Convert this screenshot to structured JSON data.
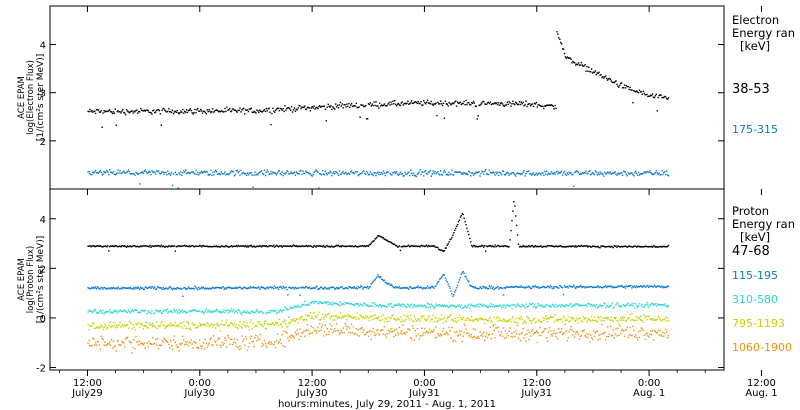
{
  "chart_data": [
    {
      "type": "scatter",
      "panel": "electron",
      "ylabel_lines": [
        "ACE EPAM",
        "log(Electron Flux)",
        "[1/(cm²s ster MeV)]"
      ],
      "legend_title_lines": [
        "Electron",
        "Energy ran",
        "[keV]"
      ],
      "legend_placement": "right",
      "ylim": [
        1.0,
        4.8
      ],
      "yticks": [
        2,
        3,
        4
      ],
      "grid": false,
      "series": [
        {
          "name": "38-53",
          "color": "#000000",
          "profile": [
            [
              0,
              2.62
            ],
            [
              18,
              2.64
            ],
            [
              28,
              2.75
            ],
            [
              36,
              2.8
            ],
            [
              47,
              2.78
            ],
            [
              50,
              2.72
            ],
            [
              50.01,
              4.35
            ],
            [
              51,
              3.75
            ],
            [
              54,
              3.45
            ],
            [
              57,
              3.15
            ],
            [
              60,
              2.95
            ],
            [
              62,
              2.88
            ]
          ],
          "noise": 0.05
        },
        {
          "name": "175-315",
          "color": "#0a78d0",
          "profile": [
            [
              0,
              1.35
            ],
            [
              62,
              1.34
            ]
          ],
          "noise": 0.05
        }
      ]
    },
    {
      "type": "scatter",
      "panel": "proton",
      "ylabel_lines": [
        "ACE EPAM",
        "log(Proton Flux)",
        "[1/(cm²s ster MeV)]"
      ],
      "legend_title_lines": [
        "Proton",
        "Energy ran",
        "[keV]"
      ],
      "legend_placement": "right",
      "ylim": [
        -2.1,
        5.2
      ],
      "yticks": [
        -2,
        0,
        2,
        4
      ],
      "grid": false,
      "series": [
        {
          "name": "47-68",
          "color": "#000000",
          "profile": [
            [
              0,
              2.92
            ],
            [
              30,
              2.92
            ],
            [
              31,
              3.35
            ],
            [
              32,
              3.15
            ],
            [
              33,
              2.92
            ],
            [
              37,
              2.92
            ],
            [
              38,
              2.7
            ],
            [
              39,
              3.4
            ],
            [
              40,
              4.3
            ],
            [
              41,
              2.92
            ],
            [
              45,
              2.92
            ],
            [
              45.5,
              4.8
            ],
            [
              46,
              2.92
            ],
            [
              62,
              2.9
            ]
          ],
          "noise": 0.03
        },
        {
          "name": "115-195",
          "color": "#0a78d0",
          "profile": [
            [
              0,
              1.22
            ],
            [
              30,
              1.25
            ],
            [
              31,
              1.75
            ],
            [
              32,
              1.4
            ],
            [
              33,
              1.25
            ],
            [
              37,
              1.25
            ],
            [
              38,
              1.8
            ],
            [
              39,
              0.9
            ],
            [
              40,
              1.9
            ],
            [
              41,
              1.25
            ],
            [
              62,
              1.3
            ]
          ],
          "noise": 0.05
        },
        {
          "name": "310-580",
          "color": "#29d6d0",
          "profile": [
            [
              0,
              0.3
            ],
            [
              20,
              0.28
            ],
            [
              24,
              0.65
            ],
            [
              30,
              0.55
            ],
            [
              40,
              0.5
            ],
            [
              62,
              0.55
            ]
          ],
          "noise": 0.08
        },
        {
          "name": "795-1193",
          "color": "#c4d400",
          "profile": [
            [
              0,
              -0.3
            ],
            [
              20,
              -0.25
            ],
            [
              24,
              0.1
            ],
            [
              30,
              0.05
            ],
            [
              40,
              -0.05
            ],
            [
              62,
              0.0
            ]
          ],
          "noise": 0.14
        },
        {
          "name": "1060-1900",
          "color": "#f09010",
          "profile": [
            [
              0,
              -1.0
            ],
            [
              20,
              -0.95
            ],
            [
              24,
              -0.4
            ],
            [
              30,
              -0.5
            ],
            [
              40,
              -0.6
            ],
            [
              62,
              -0.55
            ]
          ],
          "noise": 0.25
        }
      ]
    }
  ],
  "x_axis": {
    "range_hours": [
      -4,
      68
    ],
    "xlabel": "hours:minutes, July 29, 2011 - Aug. 1, 2011",
    "ticks": [
      {
        "hour": 0,
        "time": "12:00",
        "date": "July29"
      },
      {
        "hour": 12,
        "time": "0:00",
        "date": "July30"
      },
      {
        "hour": 24,
        "time": "12:00",
        "date": "July30"
      },
      {
        "hour": 36,
        "time": "0:00",
        "date": "July31"
      },
      {
        "hour": 48,
        "time": "12:00",
        "date": "July31"
      },
      {
        "hour": 60,
        "time": "0:00",
        "date": "Aug. 1"
      },
      {
        "hour": 72,
        "time": "12:00",
        "date": "Aug. 1"
      }
    ]
  }
}
